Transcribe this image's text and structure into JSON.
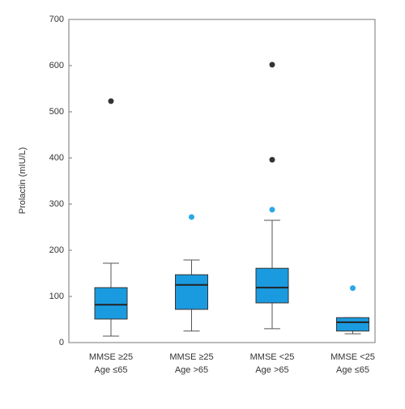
{
  "chart_data": {
    "type": "box",
    "y_label": "Prolactin (mIU/L)",
    "categories": [
      [
        "MMSE ≥25",
        "Age ≤65"
      ],
      [
        "MMSE ≥25",
        "Age >65"
      ],
      [
        "MMSE <25",
        "Age >65"
      ],
      [
        "MMSE <25",
        "Age ≤65"
      ]
    ],
    "color": "#1a9be0",
    "boxes": [
      {
        "whisker_low": 14,
        "q1": 51,
        "median": 82,
        "q3": 119,
        "whisker_high": 172,
        "outliers": [
          {
            "value": 523,
            "color": "#333333"
          }
        ]
      },
      {
        "whisker_low": 25,
        "q1": 72,
        "median": 125,
        "q3": 147,
        "whisker_high": 179,
        "outliers": [
          {
            "value": 272,
            "color": "#29a8e8"
          }
        ]
      },
      {
        "whisker_low": 30,
        "q1": 86,
        "median": 119,
        "q3": 161,
        "whisker_high": 265,
        "outliers": [
          {
            "value": 602,
            "color": "#333333"
          },
          {
            "value": 396,
            "color": "#333333"
          },
          {
            "value": 288,
            "color": "#29a8e8"
          }
        ]
      },
      {
        "whisker_low": 19,
        "q1": 25,
        "median": 44,
        "q3": 54,
        "whisker_high": 54,
        "outliers": [
          {
            "value": 118,
            "color": "#29a8e8"
          }
        ]
      }
    ],
    "ylim": [
      0,
      700
    ],
    "yticks": [
      0,
      100,
      200,
      300,
      400,
      500,
      600,
      700
    ]
  }
}
